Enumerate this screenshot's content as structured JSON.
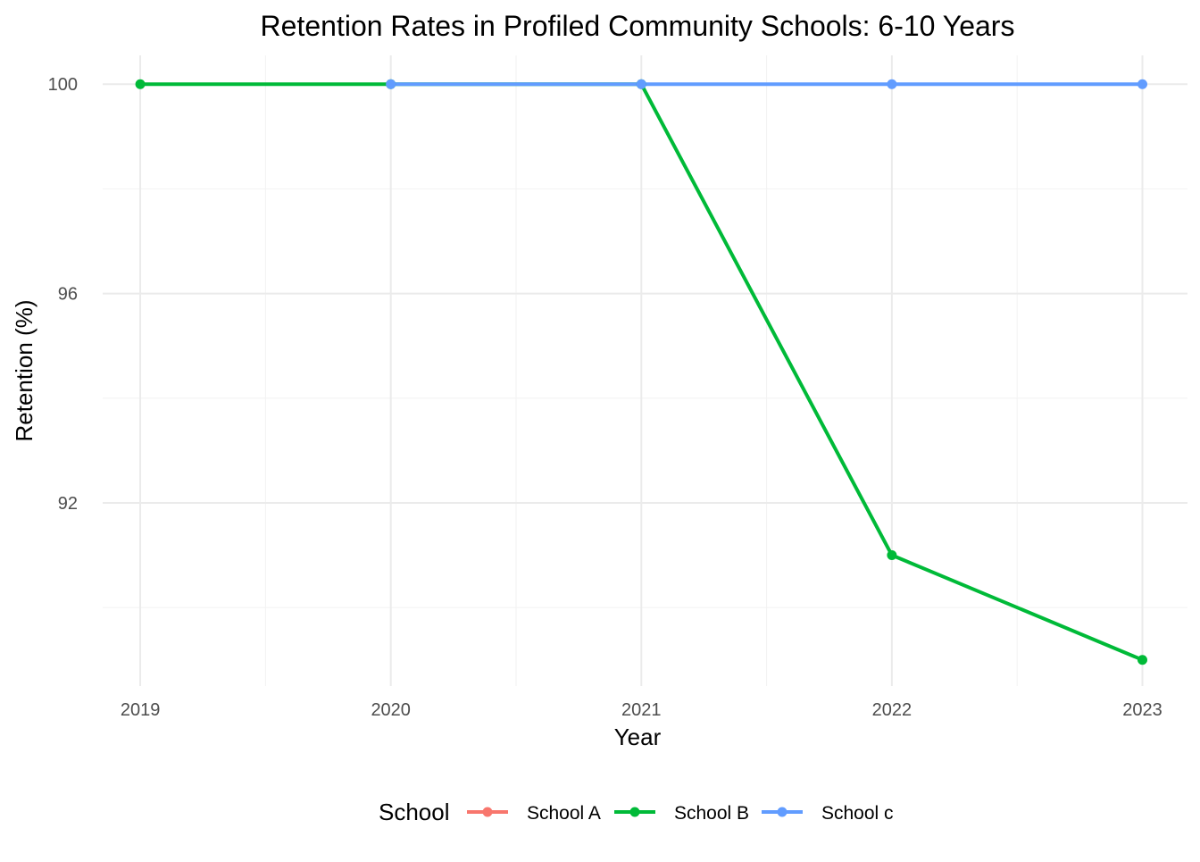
{
  "chart_data": {
    "type": "line",
    "title": "Retention Rates in Profiled Community Schools: 6-10 Years",
    "xlabel": "Year",
    "ylabel": "Retention (%)",
    "x": [
      2019,
      2020,
      2021,
      2022,
      2023
    ],
    "x_tick_labels": [
      "2019",
      "2020",
      "2021",
      "2022",
      "2023"
    ],
    "y_ticks": [
      92,
      96,
      100
    ],
    "y_tick_labels": [
      "92",
      "96",
      "100"
    ],
    "xlim": [
      2018.85,
      2023.18
    ],
    "ylim": [
      88.5,
      100.55
    ],
    "grid": true,
    "legend": {
      "title": "School",
      "position": "bottom"
    },
    "series": [
      {
        "name": "School A",
        "color": "#F8766D",
        "x": [],
        "values": []
      },
      {
        "name": "School B",
        "color": "#00BA38",
        "x": [
          2019,
          2020,
          2021,
          2022,
          2023
        ],
        "values": [
          100,
          100,
          100,
          91,
          89
        ]
      },
      {
        "name": "School c",
        "color": "#619CFF",
        "x": [
          2020,
          2021,
          2022,
          2023
        ],
        "values": [
          100,
          100,
          100,
          100
        ]
      }
    ]
  }
}
